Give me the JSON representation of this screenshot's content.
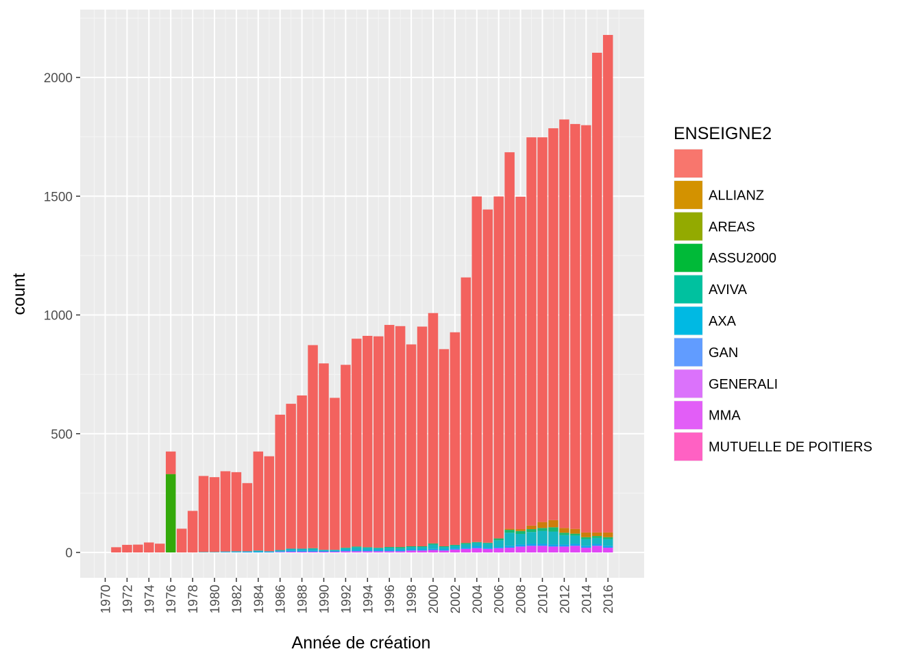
{
  "chart_data": {
    "type": "bar",
    "stacked": true,
    "title": "",
    "xlabel": "Année de création",
    "ylabel": "count",
    "ylim": [
      -110,
      2200
    ],
    "yticks": [
      0,
      500,
      1000,
      1500,
      2000
    ],
    "x_tick_labels": [
      "1970",
      "1972",
      "1974",
      "1976",
      "1978",
      "1980",
      "1982",
      "1984",
      "1986",
      "1988",
      "1990",
      "1992",
      "1994",
      "1996",
      "1998",
      "2000",
      "2002",
      "2004",
      "2006",
      "2008",
      "2010",
      "2012",
      "2014",
      "2016"
    ],
    "grid": true,
    "legend": {
      "title": "ENSEIGNE2",
      "position": "right",
      "entries": [
        {
          "label": "",
          "color": "#F8766D"
        },
        {
          "label": "ALLIANZ",
          "color": "#D39200"
        },
        {
          "label": "AREAS",
          "color": "#93AA00"
        },
        {
          "label": "ASSU2000",
          "color": "#00BA38"
        },
        {
          "label": "AVIVA",
          "color": "#00C19F"
        },
        {
          "label": "AXA",
          "color": "#00B9E3"
        },
        {
          "label": "GAN",
          "color": "#619CFF"
        },
        {
          "label": "GENERALI",
          "color": "#DB72FB"
        },
        {
          "label": "MMA",
          "color": "#E25EF7"
        },
        {
          "label": "MUTUELLE DE POITIERS",
          "color": "#FF61C3"
        }
      ]
    },
    "categories": [
      1971,
      1972,
      1973,
      1974,
      1975,
      1976,
      1977,
      1978,
      1979,
      1980,
      1981,
      1982,
      1983,
      1984,
      1985,
      1986,
      1987,
      1988,
      1989,
      1990,
      1991,
      1992,
      1993,
      1994,
      1995,
      1996,
      1997,
      1998,
      1999,
      2000,
      2001,
      2002,
      2003,
      2004,
      2005,
      2006,
      2007,
      2008,
      2009,
      2010,
      2011,
      2012,
      2013,
      2014,
      2015,
      2016
    ],
    "series": [
      {
        "name": "MUTUELLE DE POITIERS",
        "color": "#FF4FC4",
        "values": [
          0,
          0,
          0,
          0,
          0,
          0,
          0,
          0,
          0,
          0,
          0,
          0,
          0,
          0,
          0,
          0,
          0,
          0,
          0,
          0,
          0,
          0,
          0,
          0,
          0,
          0,
          0,
          0,
          0,
          0,
          0,
          0,
          0,
          0,
          0,
          0,
          0,
          0,
          0,
          0,
          0,
          0,
          0,
          0,
          0,
          0
        ]
      },
      {
        "name": "MMA",
        "color": "#E046F5",
        "values": [
          0,
          0,
          0,
          0,
          0,
          0,
          0,
          0,
          0,
          0,
          0,
          0,
          0,
          0,
          0,
          2,
          3,
          3,
          3,
          3,
          3,
          5,
          5,
          5,
          5,
          5,
          5,
          8,
          8,
          10,
          8,
          12,
          15,
          18,
          15,
          18,
          20,
          25,
          28,
          28,
          25,
          25,
          28,
          20,
          28,
          20
        ]
      },
      {
        "name": "GENERALI",
        "color": "#8A7CFF",
        "values": [
          0,
          0,
          0,
          0,
          0,
          0,
          0,
          0,
          0,
          0,
          0,
          0,
          0,
          0,
          0,
          0,
          0,
          0,
          0,
          0,
          0,
          0,
          0,
          0,
          0,
          0,
          0,
          0,
          0,
          0,
          0,
          0,
          0,
          0,
          0,
          0,
          0,
          0,
          0,
          0,
          0,
          0,
          0,
          0,
          0,
          0
        ]
      },
      {
        "name": "GAN",
        "color": "#14A2F0",
        "values": [
          0,
          0,
          0,
          0,
          0,
          0,
          0,
          0,
          0,
          0,
          2,
          2,
          3,
          3,
          3,
          3,
          5,
          5,
          5,
          3,
          3,
          5,
          5,
          5,
          5,
          5,
          5,
          5,
          5,
          5,
          5,
          5,
          5,
          8,
          5,
          5,
          8,
          8,
          8,
          8,
          8,
          8,
          8,
          8,
          8,
          8
        ]
      },
      {
        "name": "AXA",
        "color": "#16B6C2",
        "values": [
          0,
          0,
          0,
          0,
          0,
          0,
          0,
          0,
          2,
          2,
          2,
          3,
          2,
          5,
          2,
          5,
          8,
          8,
          8,
          5,
          5,
          8,
          12,
          10,
          8,
          10,
          8,
          10,
          10,
          18,
          10,
          12,
          15,
          15,
          18,
          28,
          55,
          45,
          50,
          55,
          55,
          40,
          35,
          28,
          25,
          28
        ]
      },
      {
        "name": "AVIVA",
        "color": "#19B870",
        "values": [
          0,
          0,
          0,
          0,
          0,
          0,
          0,
          0,
          0,
          0,
          0,
          0,
          0,
          0,
          0,
          0,
          0,
          0,
          2,
          0,
          0,
          2,
          3,
          2,
          2,
          3,
          5,
          3,
          3,
          5,
          3,
          3,
          5,
          3,
          3,
          8,
          12,
          12,
          12,
          12,
          18,
          10,
          8,
          8,
          8,
          8
        ]
      },
      {
        "name": "ASSU2000",
        "color": "#33A90A",
        "values": [
          0,
          0,
          0,
          0,
          0,
          330,
          0,
          0,
          0,
          0,
          0,
          0,
          0,
          0,
          0,
          0,
          0,
          0,
          0,
          0,
          0,
          0,
          0,
          0,
          0,
          0,
          0,
          0,
          0,
          0,
          0,
          0,
          0,
          0,
          0,
          0,
          0,
          0,
          0,
          0,
          0,
          0,
          0,
          0,
          0,
          0
        ]
      },
      {
        "name": "AREAS",
        "color": "#94A100",
        "values": [
          0,
          0,
          0,
          0,
          0,
          0,
          0,
          0,
          0,
          0,
          0,
          0,
          0,
          0,
          0,
          0,
          0,
          0,
          0,
          0,
          0,
          0,
          0,
          0,
          0,
          0,
          0,
          0,
          0,
          0,
          0,
          0,
          0,
          0,
          0,
          0,
          0,
          0,
          0,
          0,
          0,
          0,
          0,
          0,
          0,
          0
        ]
      },
      {
        "name": "ALLIANZ",
        "color": "#CD7D0C",
        "values": [
          0,
          0,
          0,
          0,
          0,
          0,
          0,
          0,
          0,
          0,
          0,
          0,
          0,
          0,
          0,
          0,
          0,
          0,
          0,
          0,
          0,
          0,
          0,
          0,
          0,
          0,
          0,
          0,
          0,
          0,
          0,
          0,
          0,
          0,
          0,
          0,
          5,
          8,
          15,
          25,
          30,
          20,
          20,
          20,
          15,
          20
        ]
      },
      {
        "name": "",
        "color": "#F3625E",
        "values": [
          22,
          32,
          33,
          42,
          37,
          95,
          100,
          175,
          320,
          315,
          338,
          333,
          287,
          417,
          400,
          570,
          610,
          645,
          855,
          785,
          640,
          770,
          875,
          890,
          890,
          935,
          930,
          850,
          925,
          970,
          830,
          895,
          1118,
          1455,
          1403,
          1440,
          1585,
          1400,
          1635,
          1620,
          1650,
          1720,
          1705,
          1715,
          2020,
          2095
        ]
      }
    ]
  }
}
